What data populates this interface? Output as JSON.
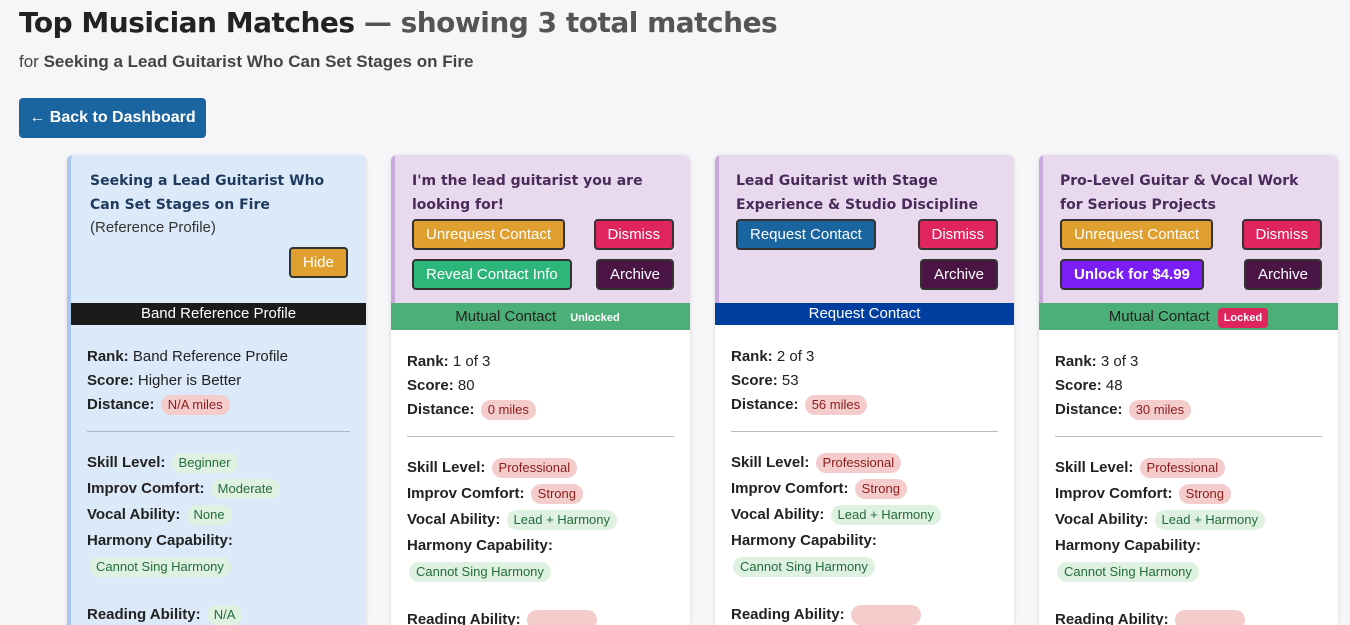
{
  "page": {
    "title": "Top Musician Matches",
    "subtitle": "— showing 3 total matches",
    "for_prefix": "for",
    "for_listing": "Seeking a Lead Guitarist Who Can Set Stages on Fire",
    "back_label": "← Back to Dashboard"
  },
  "labels": {
    "rank": "Rank:",
    "score": "Score:",
    "distance": "Distance:",
    "skill": "Skill Level:",
    "improv": "Improv Comfort:",
    "vocal": "Vocal Ability:",
    "harmony": "Harmony Capability:",
    "reading": "Reading Ability:"
  },
  "reference": {
    "title": "Seeking a Lead Guitarist Who Can Set Stages on Fire",
    "note": "(Reference Profile)",
    "hide": "Hide",
    "status": "Band Reference Profile",
    "rank": "Band Reference Profile",
    "score": "Higher is Better",
    "distance": "N/A miles",
    "skill": "Beginner",
    "improv": "Moderate",
    "vocal": "None",
    "harmony": "Cannot Sing Harmony",
    "reading": "N/A"
  },
  "matches": [
    {
      "title": "I'm the lead guitarist you are looking for!",
      "btn1": "Unrequest Contact",
      "btn2": "Dismiss",
      "btn3": "Reveal Contact Info",
      "btn4": "Archive",
      "status": "Mutual Contact",
      "tag": "Unlocked",
      "rank": "1 of 3",
      "score": "80",
      "distance": "0 miles",
      "skill": "Professional",
      "improv": "Strong",
      "vocal": "Lead + Harmony",
      "harmony": "Cannot Sing Harmony"
    },
    {
      "title": "Lead Guitarist with Stage Experience & Studio Discipline",
      "btn1": "Request Contact",
      "btn2": "Dismiss",
      "btn4": "Archive",
      "status": "Request Contact",
      "rank": "2 of 3",
      "score": "53",
      "distance": "56 miles",
      "skill": "Professional",
      "improv": "Strong",
      "vocal": "Lead + Harmony",
      "harmony": "Cannot Sing Harmony"
    },
    {
      "title": "Pro-Level Guitar & Vocal Work for Serious Projects",
      "btn1": "Unrequest Contact",
      "btn2": "Dismiss",
      "btn3": "Unlock for $4.99",
      "btn4": "Archive",
      "status": "Mutual Contact",
      "tag": "Locked",
      "rank": "3 of 3",
      "score": "48",
      "distance": "30 miles",
      "skill": "Professional",
      "improv": "Strong",
      "vocal": "Lead + Harmony",
      "harmony": "Cannot Sing Harmony"
    }
  ],
  "colors": {
    "primary": "#1a64a0",
    "unrequest": "#e0a030",
    "dismiss": "#e0245e",
    "archive": "#4a1545",
    "reveal": "#2db67a",
    "unlock": "#7a1ef5",
    "mutual": "#4caf78",
    "request_bar": "#003fa0"
  }
}
